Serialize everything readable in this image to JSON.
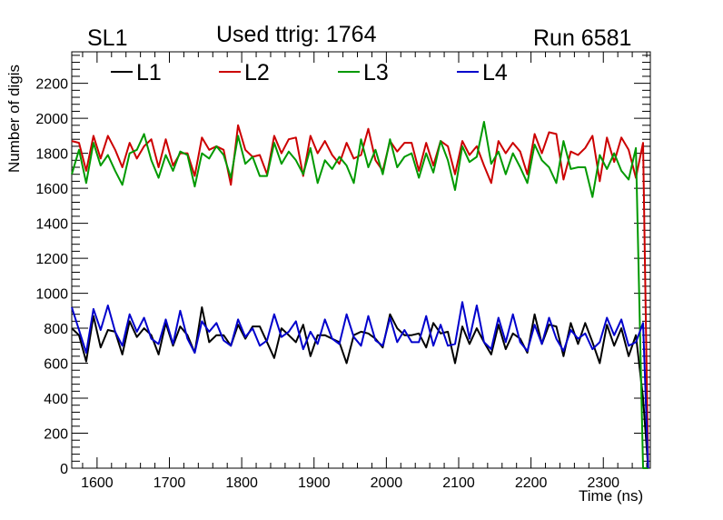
{
  "header": {
    "left": "SL1",
    "center": "Used ttrig: 1764",
    "right": "Run 6581"
  },
  "chart_data": {
    "type": "line",
    "title": "Used ttrig: 1764",
    "xlabel": "Time (ns)",
    "ylabel": "Number of digis",
    "xlim": [
      1565,
      2365
    ],
    "ylim": [
      0,
      2380
    ],
    "xticks": [
      1600,
      1700,
      1800,
      1900,
      2000,
      2100,
      2200,
      2300
    ],
    "yticks": [
      0,
      200,
      400,
      600,
      800,
      1000,
      1200,
      1400,
      1600,
      1800,
      2000,
      2200
    ],
    "x": [
      1565,
      1575,
      1585,
      1595,
      1605,
      1615,
      1625,
      1635,
      1645,
      1655,
      1665,
      1675,
      1685,
      1695,
      1705,
      1715,
      1725,
      1735,
      1745,
      1755,
      1765,
      1775,
      1785,
      1795,
      1805,
      1815,
      1825,
      1835,
      1845,
      1855,
      1865,
      1875,
      1885,
      1895,
      1905,
      1915,
      1925,
      1935,
      1945,
      1955,
      1965,
      1975,
      1985,
      1995,
      2005,
      2015,
      2025,
      2035,
      2045,
      2055,
      2065,
      2075,
      2085,
      2095,
      2105,
      2115,
      2125,
      2135,
      2145,
      2155,
      2165,
      2175,
      2185,
      2195,
      2205,
      2215,
      2225,
      2235,
      2245,
      2255,
      2265,
      2275,
      2285,
      2295,
      2305,
      2315,
      2325,
      2335,
      2345,
      2355,
      2362
    ],
    "legend": [
      "L1",
      "L2",
      "L3",
      "L4"
    ],
    "series": [
      {
        "name": "L1",
        "color": "#000000",
        "values": [
          800,
          760,
          610,
          870,
          690,
          790,
          780,
          650,
          840,
          750,
          800,
          760,
          650,
          830,
          700,
          810,
          760,
          660,
          920,
          720,
          760,
          760,
          700,
          820,
          740,
          810,
          810,
          720,
          630,
          800,
          760,
          720,
          820,
          640,
          760,
          760,
          740,
          720,
          600,
          760,
          780,
          770,
          740,
          690,
          880,
          800,
          760,
          760,
          770,
          690,
          830,
          770,
          780,
          600,
          810,
          710,
          800,
          720,
          650,
          820,
          680,
          770,
          740,
          660,
          880,
          710,
          820,
          810,
          640,
          830,
          710,
          830,
          720,
          600,
          820,
          700,
          800,
          640,
          760,
          400,
          0
        ]
      },
      {
        "name": "L2",
        "color": "#cc0000",
        "values": [
          1870,
          1860,
          1700,
          1900,
          1770,
          1900,
          1820,
          1720,
          1860,
          1770,
          1840,
          1880,
          1720,
          1880,
          1730,
          1800,
          1800,
          1670,
          1890,
          1820,
          1840,
          1820,
          1620,
          1960,
          1820,
          1780,
          1790,
          1680,
          1900,
          1800,
          1880,
          1890,
          1670,
          1900,
          1800,
          1870,
          1790,
          1740,
          1860,
          1770,
          1790,
          1940,
          1760,
          1700,
          1870,
          1810,
          1860,
          1860,
          1700,
          1860,
          1730,
          1870,
          1840,
          1680,
          1870,
          1790,
          1840,
          1730,
          1630,
          1870,
          1800,
          1860,
          1810,
          1680,
          1910,
          1800,
          1920,
          1910,
          1650,
          1810,
          1790,
          1830,
          1900,
          1640,
          1890,
          1750,
          1890,
          1820,
          1660,
          1860,
          0
        ]
      },
      {
        "name": "L3",
        "color": "#009900",
        "values": [
          1680,
          1820,
          1630,
          1860,
          1730,
          1790,
          1700,
          1620,
          1800,
          1820,
          1910,
          1760,
          1660,
          1790,
          1700,
          1810,
          1790,
          1610,
          1800,
          1770,
          1840,
          1790,
          1660,
          1900,
          1740,
          1780,
          1670,
          1670,
          1860,
          1740,
          1810,
          1760,
          1680,
          1830,
          1630,
          1760,
          1710,
          1780,
          1730,
          1630,
          1880,
          1720,
          1820,
          1680,
          1880,
          1720,
          1780,
          1800,
          1660,
          1800,
          1690,
          1870,
          1760,
          1590,
          1840,
          1750,
          1780,
          1980,
          1740,
          1810,
          1680,
          1800,
          1720,
          1630,
          1850,
          1760,
          1720,
          1630,
          1870,
          1710,
          1720,
          1720,
          1550,
          1790,
          1710,
          1800,
          1700,
          1650,
          1830,
          0,
          0
        ]
      },
      {
        "name": "L4",
        "color": "#0000cc",
        "values": [
          920,
          790,
          660,
          910,
          790,
          930,
          780,
          700,
          880,
          780,
          860,
          740,
          710,
          850,
          710,
          900,
          740,
          660,
          840,
          780,
          830,
          730,
          700,
          850,
          750,
          800,
          700,
          730,
          880,
          750,
          780,
          840,
          680,
          780,
          710,
          850,
          740,
          710,
          880,
          750,
          700,
          870,
          730,
          700,
          860,
          720,
          790,
          720,
          720,
          870,
          700,
          820,
          700,
          710,
          950,
          740,
          930,
          720,
          680,
          860,
          720,
          880,
          720,
          670,
          820,
          710,
          860,
          740,
          670,
          790,
          740,
          770,
          680,
          720,
          860,
          760,
          850,
          700,
          720,
          830,
          0
        ]
      }
    ]
  }
}
